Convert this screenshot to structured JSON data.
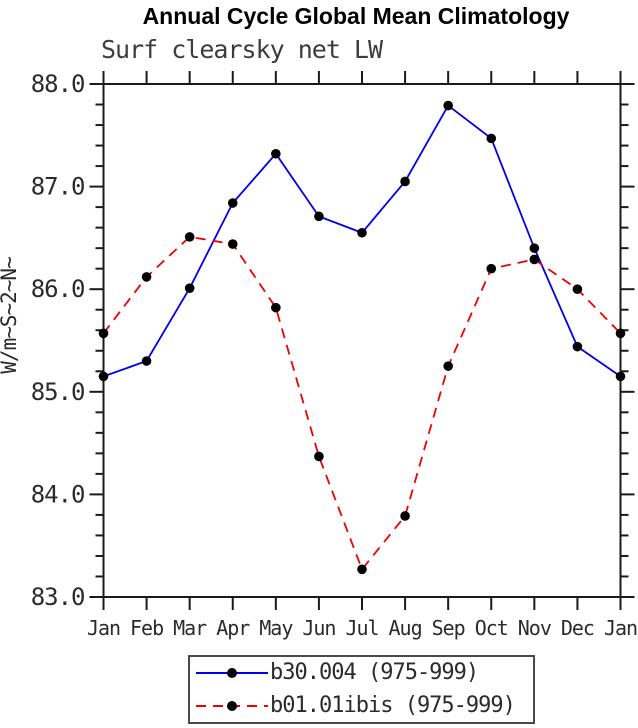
{
  "chart_data": {
    "type": "line",
    "title": "Annual Cycle Global Mean Climatology",
    "subtitle": "Surf clearsky net LW",
    "ylabel": "W/m~S~2~N~",
    "xlabel": "",
    "categories": [
      "Jan",
      "Feb",
      "Mar",
      "Apr",
      "May",
      "Jun",
      "Jul",
      "Aug",
      "Sep",
      "Oct",
      "Nov",
      "Dec",
      "Jan"
    ],
    "ylim": [
      83.0,
      88.0
    ],
    "y_ticks": [
      "83.0",
      "84.0",
      "85.0",
      "86.0",
      "87.0",
      "88.0"
    ],
    "y_minor_step": 0.2,
    "grid": false,
    "legend_position": "bottom-center",
    "frame": true,
    "series": [
      {
        "name": "b30.004 (975-999)",
        "color": "#0000ee",
        "style": "solid",
        "marker": "filled-circle",
        "marker_color": "#000000",
        "values": [
          85.15,
          85.3,
          86.01,
          86.84,
          87.32,
          86.71,
          86.55,
          87.05,
          87.79,
          87.47,
          86.4,
          85.44,
          85.15
        ]
      },
      {
        "name": "b01.01ibis (975-999)",
        "color": "#ee0000",
        "style": "dashed",
        "marker": "filled-circle",
        "marker_color": "#000000",
        "values": [
          85.57,
          86.12,
          86.51,
          86.44,
          85.82,
          84.37,
          83.27,
          83.79,
          85.25,
          86.2,
          86.29,
          86.0,
          85.57
        ]
      }
    ],
    "colors": {
      "axis": "#1a1a1a",
      "tick_label": "#2b2b2b",
      "subtitle_text": "#3d3d3d",
      "legend_border": "#4a4a4a"
    }
  }
}
